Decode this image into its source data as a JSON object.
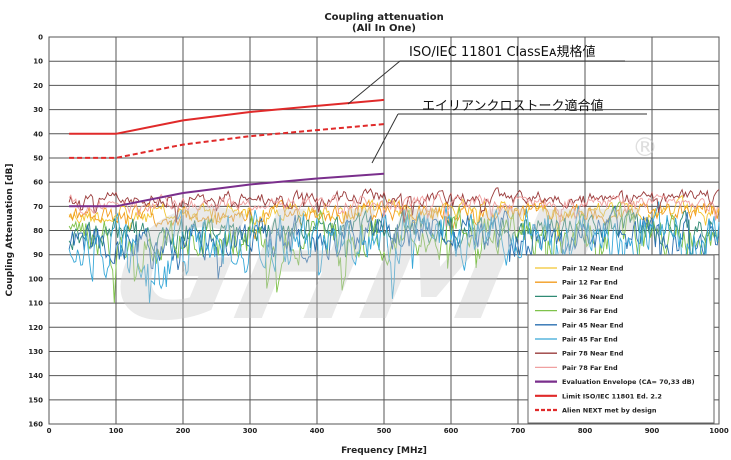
{
  "chart_data": {
    "type": "line",
    "title": "Coupling attenuation",
    "subtitle": "(All In One)",
    "xlabel": "Frequency [MHz]",
    "ylabel": "Coupling Attenuation [dB]",
    "xlim": [
      0,
      1000
    ],
    "ylim": [
      0,
      160
    ],
    "y_inverted": true,
    "grid": true,
    "legend_position": "bottom-right",
    "x_ticks": [
      0,
      100,
      200,
      300,
      400,
      500,
      600,
      700,
      800,
      900,
      1000
    ],
    "y_ticks": [
      0,
      10,
      20,
      30,
      40,
      50,
      60,
      70,
      80,
      90,
      100,
      110,
      120,
      130,
      140,
      150,
      160
    ],
    "annotations": [
      {
        "text": "ISO/IEC 11801 ClassEᴀ規格値",
        "target_series": "Limit ISO/IEC 11801 Ed. 2.2"
      },
      {
        "text": "エイリアンクロストーク適合値",
        "target_series": "Alien NEXT met by design"
      }
    ],
    "watermark": "GHMT®",
    "series": [
      {
        "name": "Pair 12 Near End",
        "color": "#f2c531",
        "style": "solid",
        "level": 71,
        "var": 4,
        "early": 6
      },
      {
        "name": "Pair 12 Far End",
        "color": "#f29c1f",
        "style": "solid",
        "level": 72,
        "var": 4,
        "early": 4
      },
      {
        "name": "Pair 36 Near End",
        "color": "#2f8a74",
        "style": "solid",
        "level": 78,
        "var": 6,
        "early": 6
      },
      {
        "name": "Pair 36 Far End",
        "color": "#7fc24a",
        "style": "solid",
        "level": 80,
        "var": 9,
        "early": 8
      },
      {
        "name": "Pair 45 Near End",
        "color": "#2a6fb0",
        "style": "solid",
        "level": 80,
        "var": 8,
        "early": 8
      },
      {
        "name": "Pair 45 Far End",
        "color": "#38a8d8",
        "style": "solid",
        "level": 80,
        "var": 11,
        "early": 18
      },
      {
        "name": "Pair 78 Near End",
        "color": "#9a3b3b",
        "style": "solid",
        "level": 66,
        "var": 3,
        "early": 2
      },
      {
        "name": "Pair 78 Far End",
        "color": "#f0a0a0",
        "style": "solid",
        "level": 68,
        "var": 3,
        "early": 2
      },
      {
        "name": "Evaluation Envelope (CA= 70,33 dB)",
        "color": "#7a2f8c",
        "style": "solid",
        "x": [
          30,
          100,
          200,
          300,
          400,
          500
        ],
        "values": [
          70,
          70,
          64.5,
          61,
          58.5,
          56.5
        ]
      },
      {
        "name": "Limit ISO/IEC 11801 Ed. 2.2",
        "color": "#e02a2a",
        "style": "solid",
        "x": [
          30,
          100,
          200,
          300,
          400,
          500
        ],
        "values": [
          40,
          40,
          34.5,
          31,
          28.5,
          26
        ]
      },
      {
        "name": "Alien NEXT met by design",
        "color": "#e02a2a",
        "style": "dashed",
        "x": [
          30,
          100,
          200,
          300,
          400,
          500
        ],
        "values": [
          50,
          50,
          44.5,
          41,
          38.5,
          36
        ]
      }
    ]
  }
}
